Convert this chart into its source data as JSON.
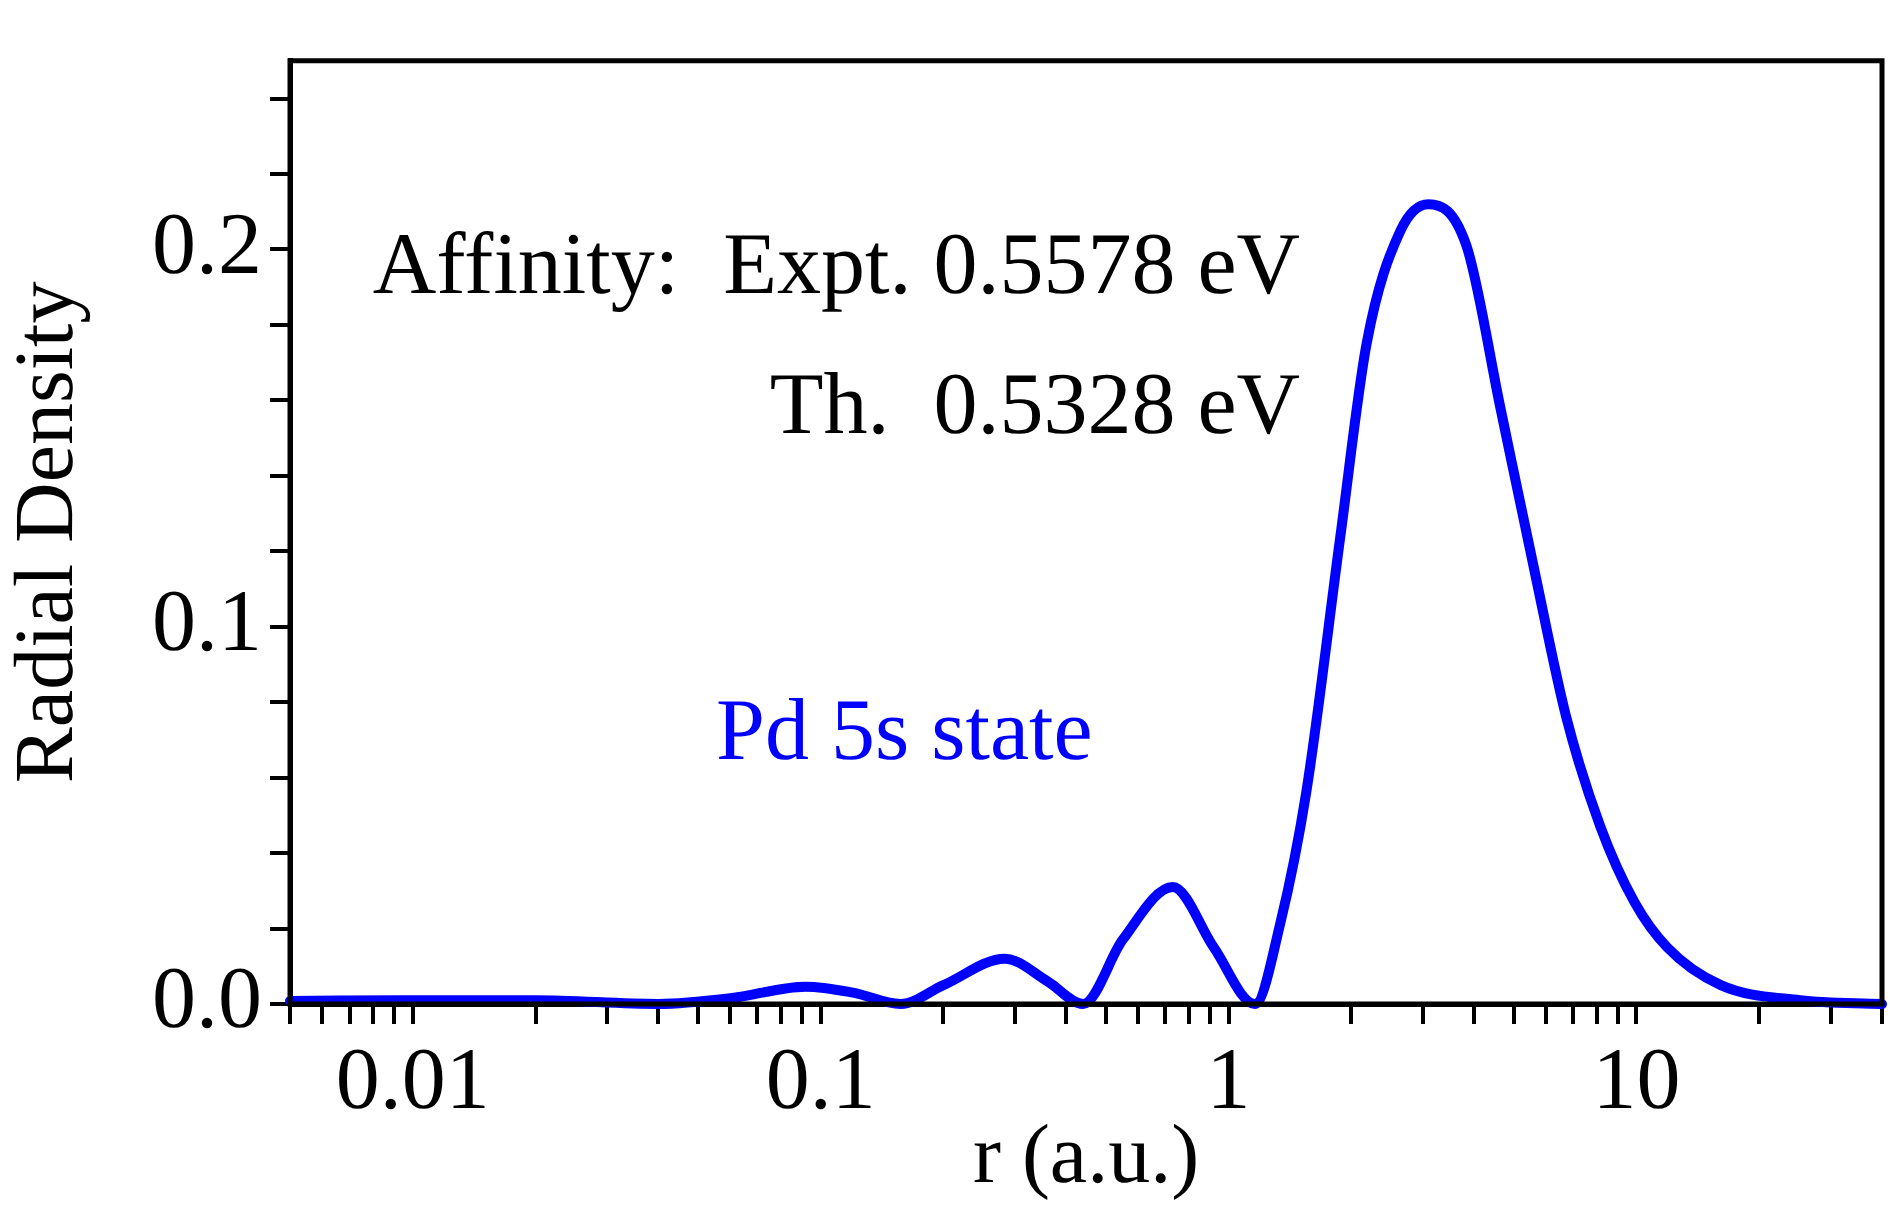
{
  "chart_data": {
    "type": "line",
    "xlabel": "r (a.u.)",
    "ylabel": "Radial Density",
    "log": "x",
    "xlim": [
      0.005,
      40
    ],
    "xticks": [
      {
        "value": 0.005,
        "label": null
      },
      {
        "value": 0.006,
        "label": null
      },
      {
        "value": 0.007,
        "label": null
      },
      {
        "value": 0.008,
        "label": null
      },
      {
        "value": 0.009,
        "label": null
      },
      {
        "value": 0.01,
        "label": "0.01"
      },
      {
        "value": 0.02,
        "label": null
      },
      {
        "value": 0.03,
        "label": null
      },
      {
        "value": 0.04,
        "label": null
      },
      {
        "value": 0.05,
        "label": null
      },
      {
        "value": 0.06,
        "label": null
      },
      {
        "value": 0.07,
        "label": null
      },
      {
        "value": 0.08,
        "label": null
      },
      {
        "value": 0.09,
        "label": null
      },
      {
        "value": 0.1,
        "label": "0.1"
      },
      {
        "value": 0.2,
        "label": null
      },
      {
        "value": 0.3,
        "label": null
      },
      {
        "value": 0.4,
        "label": null
      },
      {
        "value": 0.5,
        "label": null
      },
      {
        "value": 0.6,
        "label": null
      },
      {
        "value": 0.7,
        "label": null
      },
      {
        "value": 0.8,
        "label": null
      },
      {
        "value": 0.9,
        "label": null
      },
      1,
      {
        "value": 2,
        "label": null
      },
      {
        "value": 3,
        "label": null
      },
      {
        "value": 4,
        "label": null
      },
      {
        "value": 5,
        "label": null
      },
      {
        "value": 6,
        "label": null
      },
      {
        "value": 7,
        "label": null
      },
      {
        "value": 8,
        "label": null
      },
      {
        "value": 9,
        "label": null
      },
      10,
      {
        "value": 20,
        "label": null
      },
      {
        "value": 30,
        "label": null
      },
      {
        "value": 40,
        "label": null
      }
    ],
    "ylim": [
      0,
      0.25
    ],
    "yticks": [
      {
        "value": 0,
        "label": "0.0"
      },
      {
        "value": 0.02,
        "label": null
      },
      {
        "value": 0.04,
        "label": null
      },
      {
        "value": 0.06,
        "label": null
      },
      {
        "value": 0.08,
        "label": null
      },
      {
        "value": 0.1,
        "label": "0.1"
      },
      {
        "value": 0.12,
        "label": null
      },
      {
        "value": 0.14,
        "label": null
      },
      {
        "value": 0.16,
        "label": null
      },
      {
        "value": 0.18,
        "label": null
      },
      {
        "value": 0.2,
        "label": "0.2"
      },
      {
        "value": 0.22,
        "label": null
      },
      {
        "value": 0.24,
        "label": null
      }
    ],
    "marker": "none",
    "line_style": "solid",
    "annotations": [
      "Affinity:  Expt. 0.5578 eV",
      "Th.  0.5328 eV"
    ],
    "series": [
      {
        "name": "Pd 5s state",
        "color": "#0000ff",
        "x": [
          0.005,
          0.01,
          0.02,
          0.04,
          0.06,
          0.092,
          0.12,
          0.157,
          0.2,
          0.283,
          0.36,
          0.44,
          0.55,
          0.73,
          0.92,
          1.16,
          1.34,
          1.55,
          1.88,
          2.18,
          2.64,
          3.09,
          3.83,
          4.64,
          5.62,
          6.73,
          8.16,
          9.89,
          11.9,
          16.1,
          25.2,
          40
        ],
        "values": [
          0.0008,
          0.001,
          0.001,
          0,
          0.0015,
          0.0046,
          0.003,
          0,
          0.005,
          0.012,
          0.006,
          0,
          0.017,
          0.031,
          0.015,
          0,
          0.0215,
          0.056,
          0.124,
          0.175,
          0.205,
          0.212,
          0.201,
          0.158,
          0.115,
          0.076,
          0.047,
          0.027,
          0.015,
          0.005,
          0.001,
          0
        ]
      }
    ]
  }
}
